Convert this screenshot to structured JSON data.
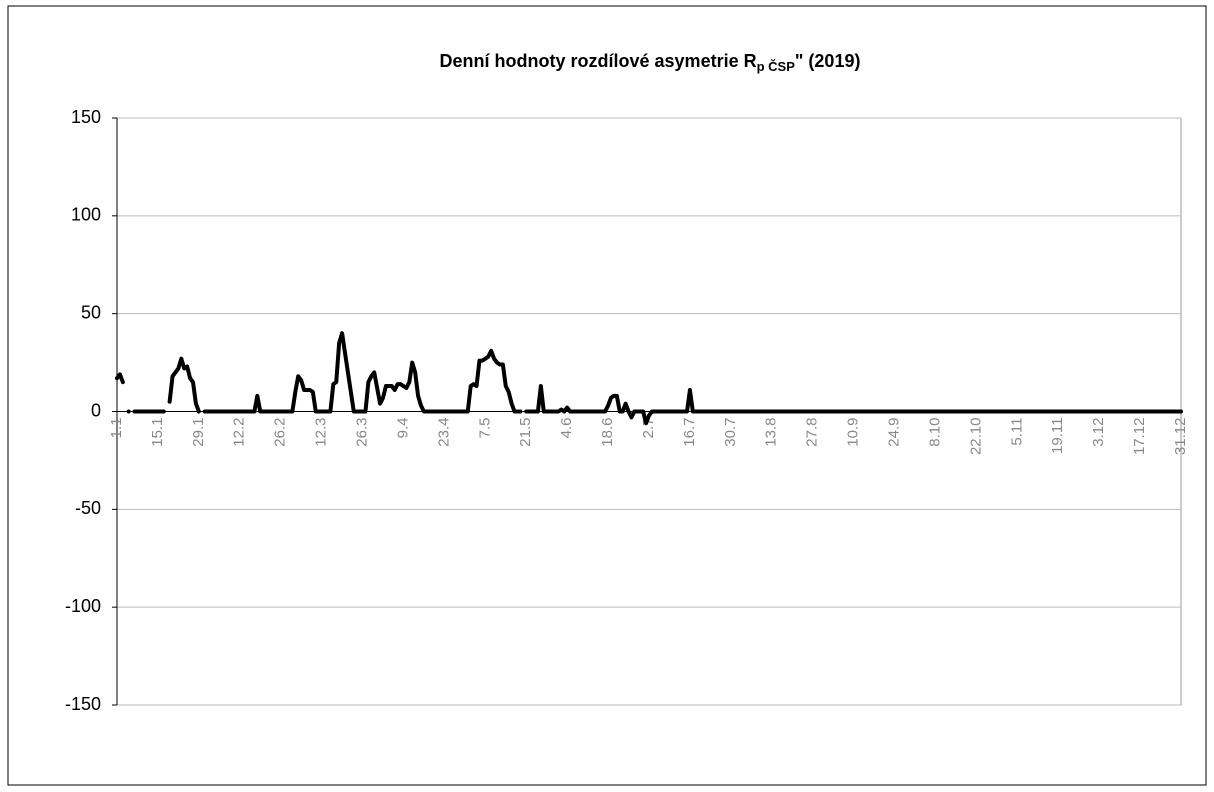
{
  "chart_data": {
    "type": "line",
    "title": "Denní hodnoty rozdílové asymetrie R",
    "title_subscript": "p ČSP",
    "title_suffix": "\" (2019)",
    "color": "#000000",
    "grid": true,
    "ylim": [
      -150,
      150
    ],
    "yticks": [
      -150,
      -100,
      -50,
      0,
      50,
      100,
      150
    ],
    "categories": [
      "1.1",
      null,
      null,
      null,
      null,
      null,
      null,
      null,
      null,
      null,
      null,
      null,
      null,
      null,
      "15.1",
      null,
      null,
      null,
      null,
      null,
      null,
      null,
      null,
      null,
      null,
      null,
      null,
      null,
      "29.1",
      null,
      null,
      null,
      null,
      null,
      null,
      null,
      null,
      null,
      null,
      null,
      null,
      null,
      "12.2",
      null,
      null,
      null,
      null,
      null,
      null,
      null,
      null,
      null,
      null,
      null,
      null,
      null,
      "26.2",
      null,
      null,
      null,
      null,
      null,
      null,
      null,
      null,
      null,
      null,
      null,
      null,
      null,
      "12.3",
      null,
      null,
      null,
      null,
      null,
      null,
      null,
      null,
      null,
      null,
      null,
      null,
      null,
      "26.3",
      null,
      null,
      null,
      null,
      null,
      null,
      null,
      null,
      null,
      null,
      null,
      null,
      null,
      "9.4",
      null,
      null,
      null,
      null,
      null,
      null,
      null,
      null,
      null,
      null,
      null,
      null,
      null,
      "23.4",
      null,
      null,
      null,
      null,
      null,
      null,
      null,
      null,
      null,
      null,
      null,
      null,
      null,
      "7.5",
      null,
      null,
      null,
      null,
      null,
      null,
      null,
      null,
      null,
      null,
      null,
      null,
      null,
      "21.5",
      null,
      null,
      null,
      null,
      null,
      null,
      null,
      null,
      null,
      null,
      null,
      null,
      null,
      "4.6",
      null,
      null,
      null,
      null,
      null,
      null,
      null,
      null,
      null,
      null,
      null,
      null,
      null,
      "18.6",
      null,
      null,
      null,
      null,
      null,
      null,
      null,
      null,
      null,
      null,
      null,
      null,
      null,
      "2.7",
      null,
      null,
      null,
      null,
      null,
      null,
      null,
      null,
      null,
      null,
      null,
      null,
      null,
      "16.7",
      null,
      null,
      null,
      null,
      null,
      null,
      null,
      null,
      null,
      null,
      null,
      null,
      null,
      "30.7",
      null,
      null,
      null,
      null,
      null,
      null,
      null,
      null,
      null,
      null,
      null,
      null,
      null,
      "13.8",
      null,
      null,
      null,
      null,
      null,
      null,
      null,
      null,
      null,
      null,
      null,
      null,
      null,
      "27.8",
      null,
      null,
      null,
      null,
      null,
      null,
      null,
      null,
      null,
      null,
      null,
      null,
      null,
      "10.9",
      null,
      null,
      null,
      null,
      null,
      null,
      null,
      null,
      null,
      null,
      null,
      null,
      null,
      "24.9",
      null,
      null,
      null,
      null,
      null,
      null,
      null,
      null,
      null,
      null,
      null,
      null,
      null,
      "8.10",
      null,
      null,
      null,
      null,
      null,
      null,
      null,
      null,
      null,
      null,
      null,
      null,
      null,
      "22.10",
      null,
      null,
      null,
      null,
      null,
      null,
      null,
      null,
      null,
      null,
      null,
      null,
      null,
      "5.11",
      null,
      null,
      null,
      null,
      null,
      null,
      null,
      null,
      null,
      null,
      null,
      null,
      null,
      "19.11",
      null,
      null,
      null,
      null,
      null,
      null,
      null,
      null,
      null,
      null,
      null,
      null,
      null,
      "3.12",
      null,
      null,
      null,
      null,
      null,
      null,
      null,
      null,
      null,
      null,
      null,
      null,
      null,
      "17.12",
      null,
      null,
      null,
      null,
      null,
      null,
      null,
      null,
      null,
      null,
      null,
      null,
      null,
      "31.12"
    ],
    "values": [
      17,
      19,
      15,
      null,
      0,
      null,
      0,
      0,
      0,
      0,
      0,
      0,
      0,
      0,
      0,
      0,
      0,
      null,
      5,
      18,
      20,
      22,
      27,
      22,
      23,
      17,
      15,
      4,
      0,
      null,
      0,
      0,
      0,
      0,
      0,
      0,
      0,
      0,
      0,
      0,
      0,
      0,
      0,
      0,
      0,
      0,
      0,
      0,
      8,
      0,
      0,
      0,
      0,
      0,
      0,
      0,
      0,
      0,
      0,
      0,
      0,
      10,
      18,
      16,
      11,
      11,
      11,
      10,
      0,
      0,
      0,
      0,
      0,
      0,
      14,
      15,
      35,
      40,
      30,
      20,
      10,
      0,
      0,
      0,
      0,
      0,
      15,
      18,
      20,
      12,
      4,
      7,
      13,
      13,
      13,
      11,
      14,
      14,
      13,
      12,
      15,
      25,
      20,
      8,
      3,
      0,
      0,
      0,
      0,
      0,
      0,
      0,
      0,
      0,
      0,
      0,
      0,
      0,
      0,
      0,
      0,
      13,
      14,
      13,
      26,
      26,
      27,
      28,
      31,
      27,
      25,
      24,
      24,
      13,
      10,
      4,
      0,
      0,
      0,
      null,
      0,
      0,
      0,
      0,
      0,
      13,
      0,
      0,
      0,
      0,
      0,
      0,
      1,
      0,
      2,
      0,
      0,
      0,
      0,
      0,
      0,
      0,
      0,
      0,
      0,
      0,
      0,
      0,
      3,
      7,
      8,
      8,
      0,
      0,
      4,
      0,
      -3,
      0,
      0,
      0,
      0,
      -6,
      -2,
      0,
      0,
      0,
      0,
      0,
      0,
      0,
      0,
      0,
      0,
      0,
      0,
      0,
      11,
      0,
      0,
      0,
      0,
      0,
      0,
      0,
      0,
      0,
      0,
      0,
      0,
      0,
      0,
      0,
      0,
      0,
      0,
      0,
      0,
      0,
      0,
      0,
      0,
      0,
      0,
      0,
      0,
      0,
      0,
      0,
      0,
      0,
      0,
      0,
      0,
      0,
      0,
      0,
      0,
      0,
      0,
      0,
      0,
      0,
      0,
      0,
      0,
      0,
      0,
      0,
      0,
      0,
      0,
      0,
      0,
      0,
      0,
      0,
      0,
      0,
      0,
      0,
      0,
      0,
      0,
      0,
      0,
      0,
      0,
      0,
      0,
      0,
      0,
      0,
      0,
      0,
      0,
      0,
      0,
      0,
      0,
      0,
      0,
      0,
      0,
      0,
      0,
      0,
      0,
      0,
      0,
      0,
      0,
      0,
      0,
      0,
      0,
      0,
      0,
      0,
      0,
      0,
      0,
      0,
      0,
      0,
      0,
      0,
      0,
      0,
      0,
      0,
      0,
      0,
      0,
      0,
      0,
      0,
      0,
      0,
      0,
      0,
      0,
      0,
      0,
      0,
      0,
      0,
      0,
      0,
      0,
      0,
      0,
      0,
      0,
      0,
      0,
      0,
      0,
      0,
      0,
      0,
      0,
      0,
      0,
      0,
      0,
      0,
      0,
      0,
      0,
      0,
      0,
      0,
      0,
      0,
      0,
      0,
      0,
      0,
      0,
      0,
      0,
      0,
      0,
      0,
      0
    ]
  }
}
